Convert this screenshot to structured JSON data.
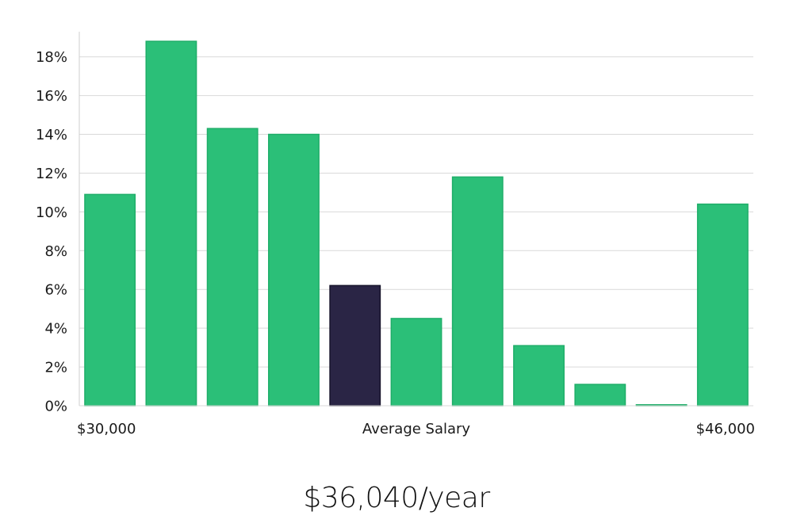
{
  "chart_data": {
    "type": "bar",
    "title": "",
    "xlabel": "Average Salary",
    "ylabel": "",
    "x_start_label": "$30,000",
    "x_end_label": "$46,000",
    "ylim": [
      0,
      19.5
    ],
    "yticks": [
      0,
      2,
      4,
      6,
      8,
      10,
      12,
      14,
      16,
      18
    ],
    "y_tick_suffix": "%",
    "grid": true,
    "values": [
      10.9,
      18.8,
      14.3,
      14.0,
      6.2,
      4.5,
      11.8,
      3.1,
      1.1,
      0.05,
      10.4
    ],
    "highlight_index": 4,
    "colors": {
      "bar": "#2bbf78",
      "bar_edge": "#1fae69",
      "highlight": "#2a2545",
      "highlight_edge": "#17142b",
      "grid": "#d9d9d9",
      "axis": "#cfcfcf"
    }
  },
  "summary": {
    "salary_text": "$36,040/year"
  }
}
